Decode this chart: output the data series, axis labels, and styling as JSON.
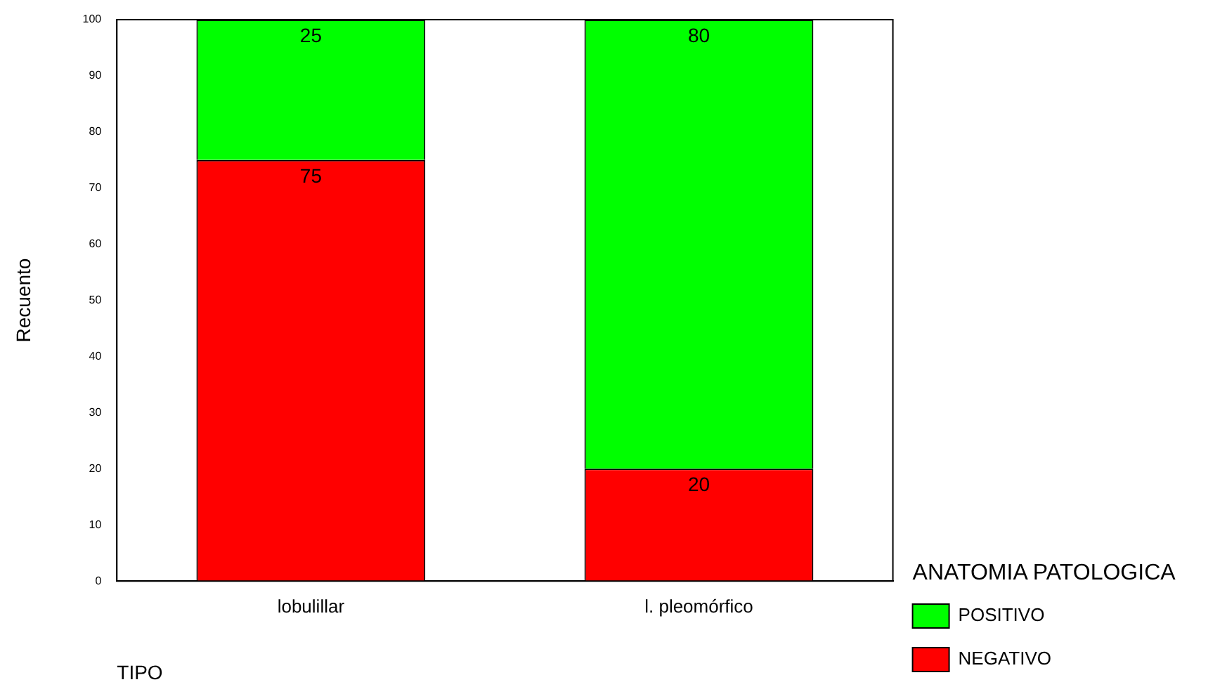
{
  "chart_data": {
    "type": "bar",
    "stacked": true,
    "xlabel": "TIPO",
    "ylabel": "Recuento",
    "legend_title": "ANATOMIA PATOLOGICA",
    "categories": [
      "lobulillar",
      "l. pleomórfico"
    ],
    "series": [
      {
        "name": "NEGATIVO",
        "color": "#ff0000",
        "values": [
          75,
          20
        ]
      },
      {
        "name": "POSITIVO",
        "color": "#00ff00",
        "values": [
          25,
          80
        ]
      }
    ],
    "ylim": [
      0,
      100
    ],
    "yticks": [
      0,
      10,
      20,
      30,
      40,
      50,
      60,
      70,
      80,
      90,
      100
    ],
    "grid": false,
    "legend": "bottom right",
    "data_labels": true
  }
}
